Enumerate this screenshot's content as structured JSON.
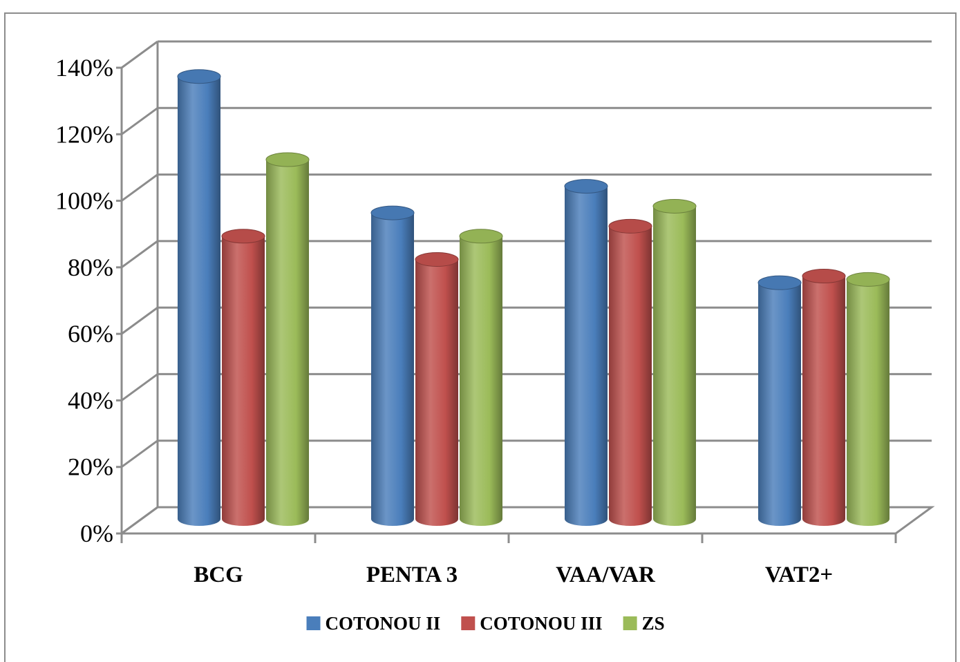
{
  "chart_data": {
    "type": "bar",
    "style": "3d-cylinder",
    "categories": [
      "BCG",
      "PENTA 3",
      "VAA/VAR",
      "VAT2+"
    ],
    "series": [
      {
        "name": "COTONOU II",
        "color": "#4a7ebb",
        "values": [
          133,
          92,
          100,
          71
        ]
      },
      {
        "name": "COTONOU III",
        "color": "#c0504d",
        "values": [
          85,
          78,
          88,
          73
        ]
      },
      {
        "name": "ZS",
        "color": "#9bbb59",
        "values": [
          108,
          85,
          94,
          72
        ]
      }
    ],
    "ylim": [
      0,
      140
    ],
    "yticks": [
      "0%",
      "20%",
      "40%",
      "60%",
      "80%",
      "100%",
      "120%",
      "140%"
    ],
    "title": "",
    "xlabel": "",
    "ylabel": "",
    "grid": true,
    "legend": "bottom"
  }
}
